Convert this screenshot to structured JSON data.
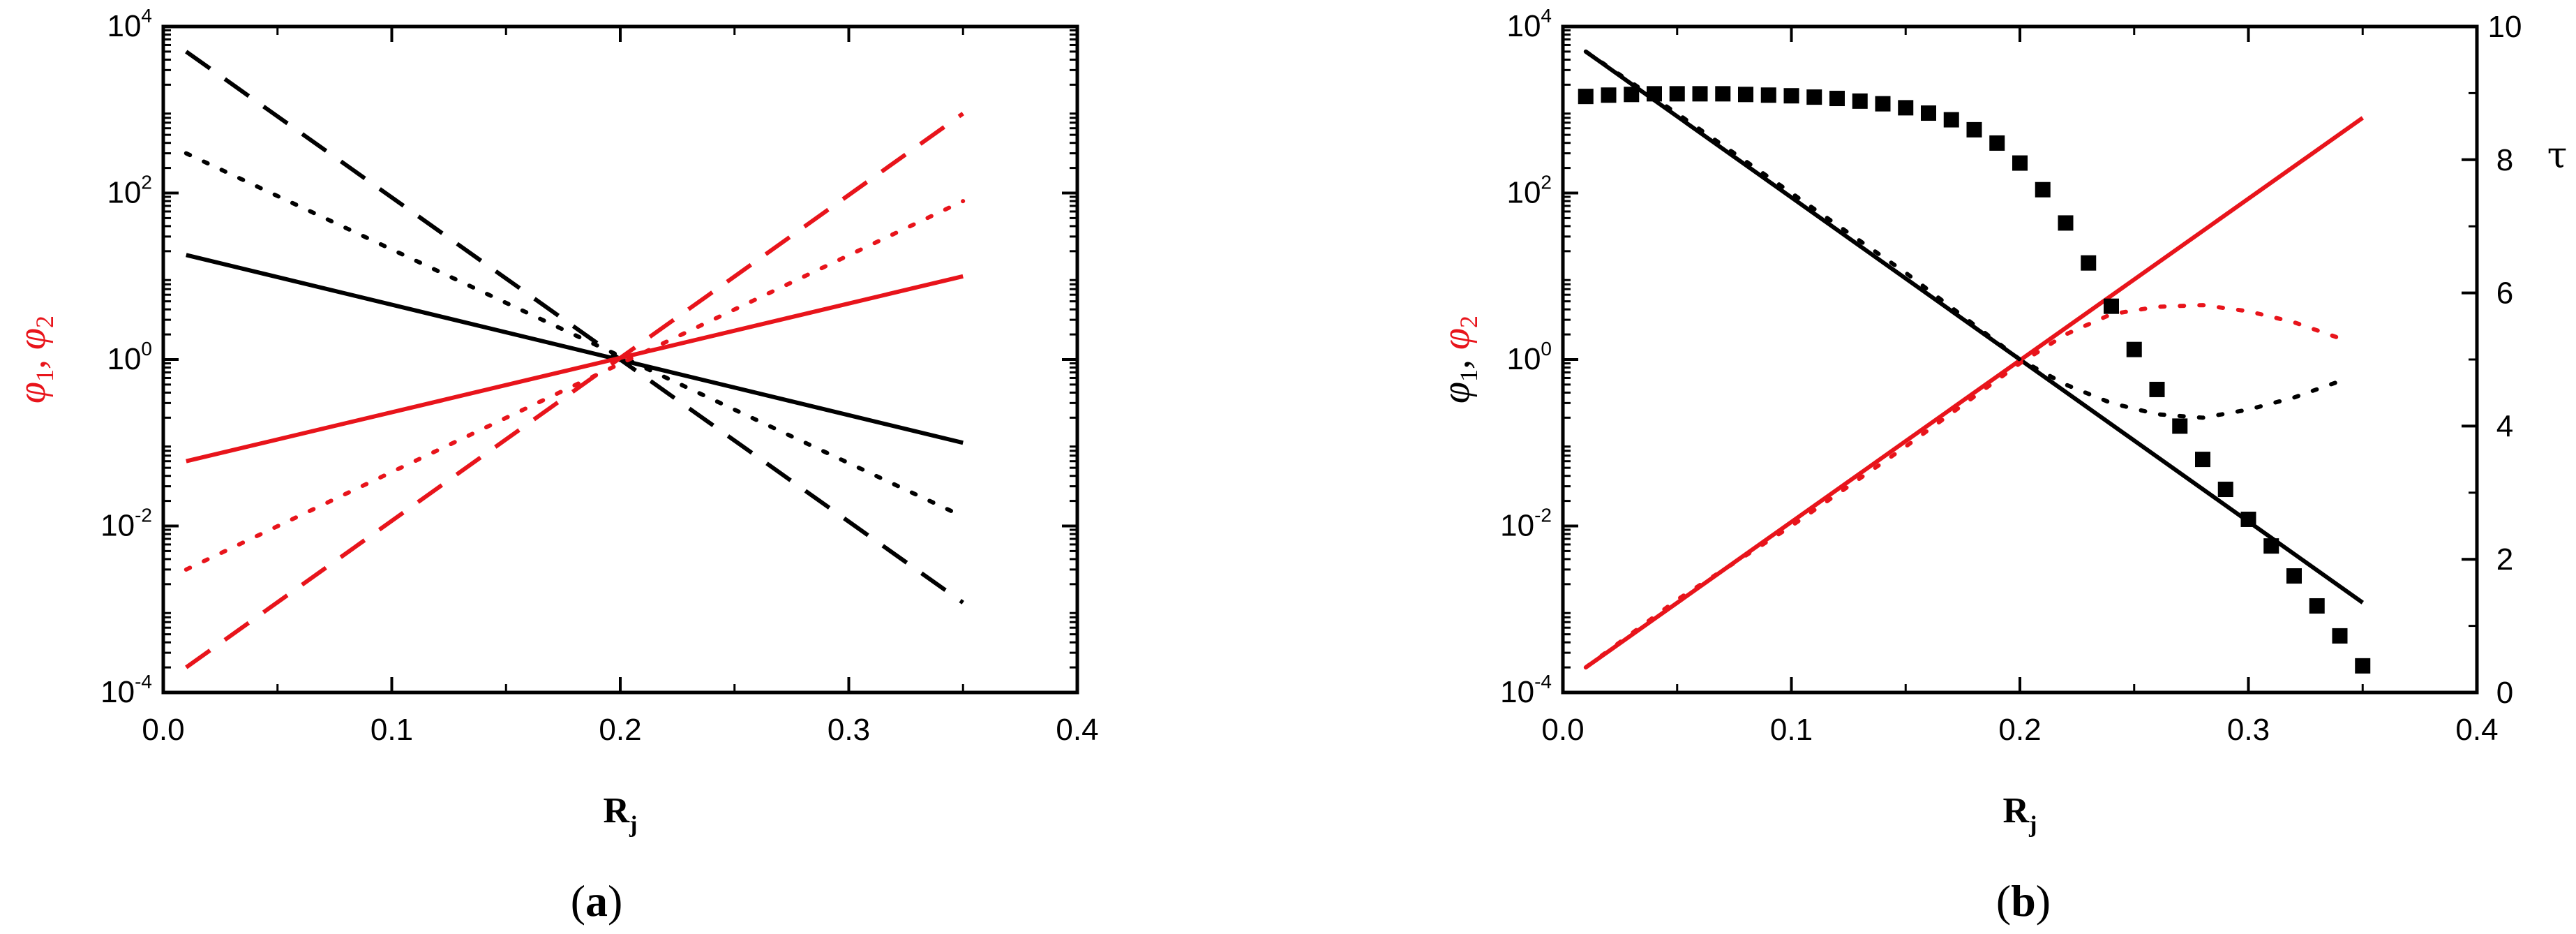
{
  "colors": {
    "black": "#000000",
    "red": "#e8141b"
  },
  "chart_data": [
    {
      "panel_label": "a",
      "type": "line",
      "xlabel": {
        "main": "R",
        "sub": "j"
      },
      "ylabel": {
        "part1": "φ",
        "sub1": "1",
        "sep": ", ",
        "part2": "φ",
        "sub2": "2"
      },
      "xlim": [
        0,
        0.4
      ],
      "ylim": [
        0.0001,
        10000
      ],
      "yscale": "log",
      "xticks": [
        "0.0",
        "0.1",
        "0.2",
        "0.3",
        "0.4"
      ],
      "yticks": [
        {
          "base": "10",
          "exp": "-4"
        },
        {
          "base": "10",
          "exp": "-2"
        },
        {
          "base": "10",
          "exp": "0"
        },
        {
          "base": "10",
          "exp": "2"
        },
        {
          "base": "10",
          "exp": "4"
        }
      ],
      "series": [
        {
          "color": "black",
          "style": "dash",
          "x": [
            0.01,
            0.35
          ],
          "y": [
            5000,
            0.0012
          ]
        },
        {
          "color": "black",
          "style": "dot",
          "x": [
            0.01,
            0.35
          ],
          "y": [
            300,
            0.013
          ]
        },
        {
          "color": "black",
          "style": "solid",
          "x": [
            0.01,
            0.35
          ],
          "y": [
            18,
            0.1
          ]
        },
        {
          "color": "red",
          "style": "dash",
          "x": [
            0.01,
            0.35
          ],
          "y": [
            0.0002,
            900
          ]
        },
        {
          "color": "red",
          "style": "dot",
          "x": [
            0.01,
            0.35
          ],
          "y": [
            0.003,
            80
          ]
        },
        {
          "color": "red",
          "style": "solid",
          "x": [
            0.01,
            0.35
          ],
          "y": [
            0.06,
            10
          ]
        }
      ]
    },
    {
      "panel_label": "b",
      "type": "line",
      "xlabel": {
        "main": "R",
        "sub": "j"
      },
      "ylabel": {
        "part1": "φ",
        "sub1": "1",
        "sep": ", ",
        "part2": "φ",
        "sub2": "2"
      },
      "y2label": "τ",
      "xlim": [
        0,
        0.4
      ],
      "ylim": [
        0.0001,
        10000
      ],
      "yscale": "log",
      "y2lim": [
        0,
        10
      ],
      "xticks": [
        "0.0",
        "0.1",
        "0.2",
        "0.3",
        "0.4"
      ],
      "yticks": [
        {
          "base": "10",
          "exp": "-4"
        },
        {
          "base": "10",
          "exp": "-2"
        },
        {
          "base": "10",
          "exp": "0"
        },
        {
          "base": "10",
          "exp": "2"
        },
        {
          "base": "10",
          "exp": "4"
        }
      ],
      "y2ticks": [
        "0",
        "2",
        "4",
        "6",
        "8",
        "10"
      ],
      "series": [
        {
          "color": "black",
          "style": "solid",
          "x": [
            0.01,
            0.35
          ],
          "y": [
            5000,
            0.0012
          ]
        },
        {
          "color": "red",
          "style": "solid",
          "x": [
            0.01,
            0.35
          ],
          "y": [
            0.0002,
            800
          ]
        },
        {
          "color": "black",
          "style": "dot",
          "x": [
            0.01,
            0.05,
            0.1,
            0.15,
            0.2,
            0.22,
            0.24,
            0.26,
            0.28,
            0.3,
            0.32,
            0.34
          ],
          "y": [
            5000,
            900,
            100,
            11,
            1.0,
            0.5,
            0.3,
            0.22,
            0.2,
            0.25,
            0.35,
            0.55
          ]
        },
        {
          "color": "red",
          "style": "dot",
          "x": [
            0.01,
            0.05,
            0.1,
            0.15,
            0.2,
            0.22,
            0.24,
            0.26,
            0.28,
            0.3,
            0.32,
            0.34
          ],
          "y": [
            0.0002,
            0.0013,
            0.01,
            0.09,
            0.9,
            2.0,
            3.5,
            4.3,
            4.5,
            3.8,
            2.8,
            1.8
          ]
        }
      ],
      "tau_series": {
        "marker": "square",
        "color": "black",
        "x": [
          0.01,
          0.02,
          0.03,
          0.04,
          0.05,
          0.06,
          0.07,
          0.08,
          0.09,
          0.1,
          0.11,
          0.12,
          0.13,
          0.14,
          0.15,
          0.16,
          0.17,
          0.18,
          0.19,
          0.2,
          0.21,
          0.22,
          0.23,
          0.24,
          0.25,
          0.26,
          0.27,
          0.28,
          0.29,
          0.3,
          0.31,
          0.32,
          0.33,
          0.34,
          0.35
        ],
        "y": [
          8.95,
          8.97,
          8.98,
          8.99,
          8.99,
          8.99,
          8.99,
          8.98,
          8.97,
          8.96,
          8.94,
          8.92,
          8.88,
          8.84,
          8.78,
          8.7,
          8.6,
          8.45,
          8.25,
          7.95,
          7.55,
          7.05,
          6.45,
          5.8,
          5.15,
          4.55,
          4.0,
          3.5,
          3.05,
          2.6,
          2.2,
          1.75,
          1.3,
          0.85,
          0.4
        ]
      }
    }
  ]
}
